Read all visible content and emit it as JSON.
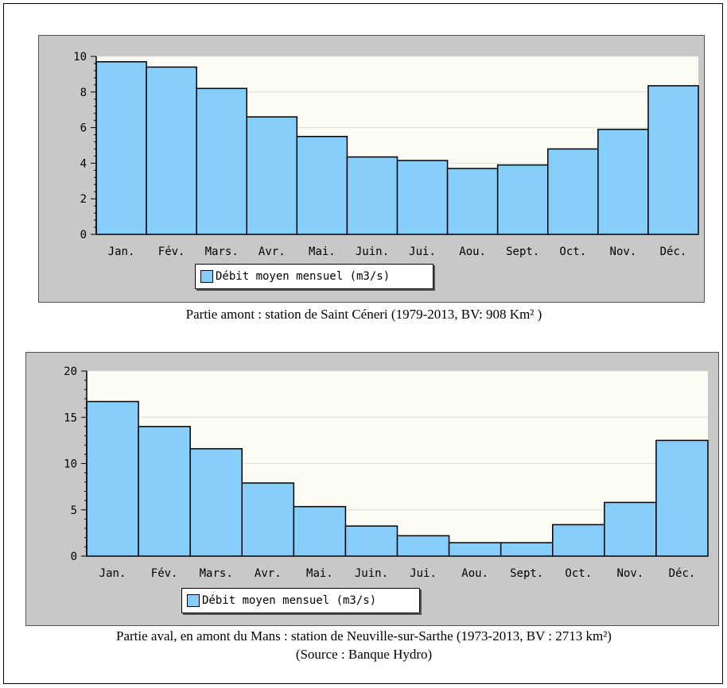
{
  "chart_data": [
    {
      "type": "bar",
      "categories": [
        "Jan.",
        "Fév.",
        "Mars.",
        "Avr.",
        "Mai.",
        "Juin.",
        "Jui.",
        "Aou.",
        "Sept.",
        "Oct.",
        "Nov.",
        "Déc."
      ],
      "series": [
        {
          "name": "Débit moyen mensuel (m3/s)",
          "values": [
            9.7,
            9.4,
            8.2,
            6.6,
            5.5,
            4.35,
            4.15,
            3.7,
            3.9,
            4.8,
            5.9,
            8.35
          ]
        }
      ],
      "ylim": [
        0,
        10
      ],
      "yticks": [
        0,
        2,
        4,
        6,
        8,
        10
      ],
      "grid": true,
      "legend_position": "bottom-center",
      "bar_color": "#87cefa"
    },
    {
      "type": "bar",
      "categories": [
        "Jan.",
        "Fév.",
        "Mars.",
        "Avr.",
        "Mai.",
        "Juin.",
        "Jui.",
        "Aou.",
        "Sept.",
        "Oct.",
        "Nov.",
        "Déc."
      ],
      "series": [
        {
          "name": "Débit moyen mensuel (m3/s)",
          "values": [
            16.7,
            14.0,
            11.6,
            7.9,
            5.35,
            3.25,
            2.2,
            1.45,
            1.45,
            3.4,
            5.8,
            12.5
          ]
        }
      ],
      "ylim": [
        0,
        20
      ],
      "yticks": [
        0,
        5,
        10,
        15,
        20
      ],
      "grid": true,
      "legend_position": "bottom-center",
      "bar_color": "#87cefa"
    }
  ],
  "captions": {
    "chart1": "Partie amont : station de Saint Céneri (1979-2013, BV: 908 Km² )",
    "chart2": "Partie aval, en amont du Mans : station de Neuville-sur-Sarthe (1973-2013, BV : 2713 km²)",
    "source": "(Source : Banque Hydro)"
  }
}
